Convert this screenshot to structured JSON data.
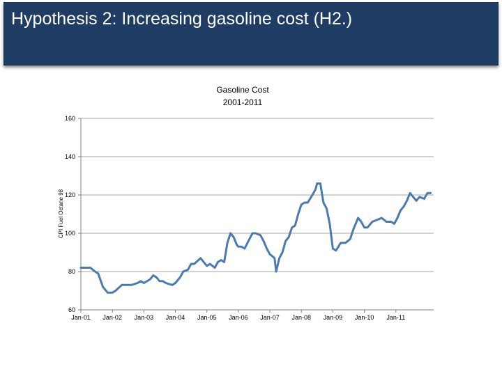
{
  "slide": {
    "title": "Hypothesis 2: Increasing gasoline cost (H2.)"
  },
  "colors": {
    "banner": "#1f3d64",
    "line": "#4a7ab0",
    "grid": "#a6a6a6"
  },
  "chart_data": {
    "type": "line",
    "title_lines": [
      "Gasoline Cost",
      "2001-2011"
    ],
    "xlabel": "",
    "ylabel": "CPI Fuel Octane 98",
    "ylim": [
      60,
      160
    ],
    "yticks": [
      60,
      80,
      100,
      120,
      140,
      160
    ],
    "ytick_labels": [
      "60",
      "80",
      "100",
      "120",
      "140",
      "160"
    ],
    "xlim": [
      2001.0,
      2012.2
    ],
    "xticks": [
      2001,
      2002,
      2003,
      2004,
      2005,
      2006,
      2007,
      2008,
      2009,
      2010,
      2011
    ],
    "xtick_labels": [
      "Jan-01",
      "Jan-02",
      "Jan-03",
      "Jan-04",
      "Jan-05",
      "Jan-06",
      "Jan-07",
      "Jan-08",
      "Jan-09",
      "Jan-10",
      "Jan-11"
    ],
    "grid": true,
    "series": [
      {
        "name": "Gasoline Cost",
        "x": [
          2001.0,
          2001.3,
          2001.45,
          2001.55,
          2001.7,
          2001.85,
          2002.0,
          2002.1,
          2002.3,
          2002.6,
          2002.8,
          2002.9,
          2003.0,
          2003.2,
          2003.3,
          2003.4,
          2003.5,
          2003.6,
          2003.7,
          2003.9,
          2004.0,
          2004.15,
          2004.25,
          2004.4,
          2004.5,
          2004.6,
          2004.8,
          2004.9,
          2005.0,
          2005.1,
          2005.25,
          2005.35,
          2005.45,
          2005.55,
          2005.65,
          2005.75,
          2005.85,
          2005.95,
          2006.0,
          2006.1,
          2006.2,
          2006.35,
          2006.45,
          2006.55,
          2006.7,
          2006.8,
          2006.9,
          2007.0,
          2007.08,
          2007.15,
          2007.2,
          2007.3,
          2007.4,
          2007.5,
          2007.6,
          2007.7,
          2007.8,
          2007.9,
          2008.0,
          2008.1,
          2008.2,
          2008.35,
          2008.45,
          2008.5,
          2008.6,
          2008.7,
          2008.8,
          2008.9,
          2009.0,
          2009.1,
          2009.25,
          2009.4,
          2009.55,
          2009.65,
          2009.8,
          2009.9,
          2010.0,
          2010.1,
          2010.25,
          2010.4,
          2010.55,
          2010.7,
          2010.85,
          2010.95,
          2011.05,
          2011.15,
          2011.25,
          2011.35,
          2011.45,
          2011.55,
          2011.65,
          2011.75,
          2011.9,
          2012.0,
          2012.1
        ],
        "values": [
          82,
          82,
          80,
          79,
          72,
          69,
          69,
          70,
          73,
          73,
          74,
          75,
          74,
          76,
          78,
          77,
          75,
          75,
          74,
          73,
          74,
          77,
          80,
          81,
          84,
          84,
          87,
          85,
          83,
          84,
          82,
          85,
          86,
          85,
          95,
          100,
          98,
          94,
          93,
          93,
          92,
          97,
          100,
          100,
          99,
          96,
          92,
          89,
          88,
          87,
          80,
          87,
          90,
          96,
          98,
          103,
          104,
          110,
          115,
          116,
          116,
          120,
          123,
          126,
          126,
          116,
          113,
          105,
          92,
          91,
          95,
          95,
          97,
          102,
          108,
          106,
          103,
          103,
          106,
          107,
          108,
          106,
          106,
          105,
          108,
          112,
          114,
          117,
          121,
          119,
          117,
          119,
          118,
          121,
          121
        ]
      }
    ]
  }
}
